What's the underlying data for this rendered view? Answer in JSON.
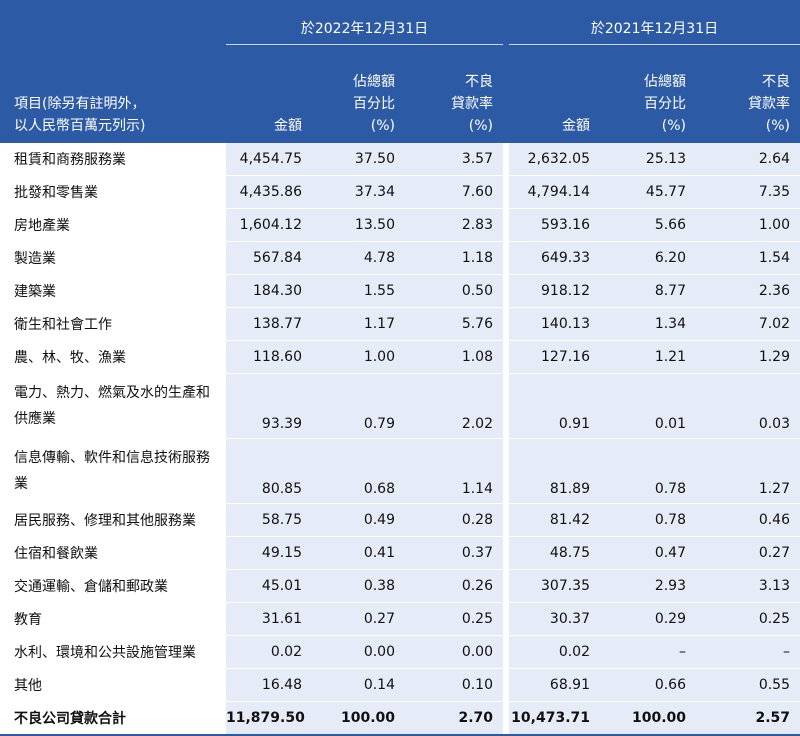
{
  "header": {
    "period_2022": "於2022年12月31日",
    "period_2021": "於2021年12月31日",
    "item_label_line1": "項目(除另有註明外，",
    "item_label_line2": "以人民幣百萬元列示)",
    "col_amount": "金額",
    "col_share_line1": "佔總額",
    "col_share_line2": "百分比",
    "col_share_line3": "(%)",
    "col_npl_line1": "不良",
    "col_npl_line2": "貸款率",
    "col_npl_line3": "(%)"
  },
  "rows": [
    {
      "label": "租賃和商務服務業",
      "a22": "4,454.75",
      "s22": "37.50",
      "r22": "3.57",
      "a21": "2,632.05",
      "s21": "25.13",
      "r21": "2.64"
    },
    {
      "label": "批發和零售業",
      "a22": "4,435.86",
      "s22": "37.34",
      "r22": "7.60",
      "a21": "4,794.14",
      "s21": "45.77",
      "r21": "7.35"
    },
    {
      "label": "房地產業",
      "a22": "1,604.12",
      "s22": "13.50",
      "r22": "2.83",
      "a21": "593.16",
      "s21": "5.66",
      "r21": "1.00"
    },
    {
      "label": "製造業",
      "a22": "567.84",
      "s22": "4.78",
      "r22": "1.18",
      "a21": "649.33",
      "s21": "6.20",
      "r21": "1.54"
    },
    {
      "label": "建築業",
      "a22": "184.30",
      "s22": "1.55",
      "r22": "0.50",
      "a21": "918.12",
      "s21": "8.77",
      "r21": "2.36"
    },
    {
      "label": "衛生和社會工作",
      "a22": "138.77",
      "s22": "1.17",
      "r22": "5.76",
      "a21": "140.13",
      "s21": "1.34",
      "r21": "7.02"
    },
    {
      "label": "農、林、牧、漁業",
      "a22": "118.60",
      "s22": "1.00",
      "r22": "1.08",
      "a21": "127.16",
      "s21": "1.21",
      "r21": "1.29"
    },
    {
      "label_line1": "電力、熱力、燃氣及水的生產和",
      "label_line2": "供應業",
      "a22": "93.39",
      "s22": "0.79",
      "r22": "2.02",
      "a21": "0.91",
      "s21": "0.01",
      "r21": "0.03"
    },
    {
      "label_line1": "信息傳輸、軟件和信息技術服務",
      "label_line2": "業",
      "a22": "80.85",
      "s22": "0.68",
      "r22": "1.14",
      "a21": "81.89",
      "s21": "0.78",
      "r21": "1.27"
    },
    {
      "label": "居民服務、修理和其他服務業",
      "a22": "58.75",
      "s22": "0.49",
      "r22": "0.28",
      "a21": "81.42",
      "s21": "0.78",
      "r21": "0.46"
    },
    {
      "label": "住宿和餐飲業",
      "a22": "49.15",
      "s22": "0.41",
      "r22": "0.37",
      "a21": "48.75",
      "s21": "0.47",
      "r21": "0.27"
    },
    {
      "label": "交通運輸、倉儲和郵政業",
      "a22": "45.01",
      "s22": "0.38",
      "r22": "0.26",
      "a21": "307.35",
      "s21": "2.93",
      "r21": "3.13"
    },
    {
      "label": "教育",
      "a22": "31.61",
      "s22": "0.27",
      "r22": "0.25",
      "a21": "30.37",
      "s21": "0.29",
      "r21": "0.25"
    },
    {
      "label": "水利、環境和公共設施管理業",
      "a22": "0.02",
      "s22": "0.00",
      "r22": "0.00",
      "a21": "0.02",
      "s21": "–",
      "r21": "–"
    },
    {
      "label": "其他",
      "a22": "16.48",
      "s22": "0.14",
      "r22": "0.10",
      "a21": "68.91",
      "s21": "0.66",
      "r21": "0.55"
    }
  ],
  "total": {
    "label": "不良公司貸款合計",
    "a22": "11,879.50",
    "s22": "100.00",
    "r22": "2.70",
    "a21": "10,473.71",
    "s21": "100.00",
    "r21": "2.57"
  }
}
